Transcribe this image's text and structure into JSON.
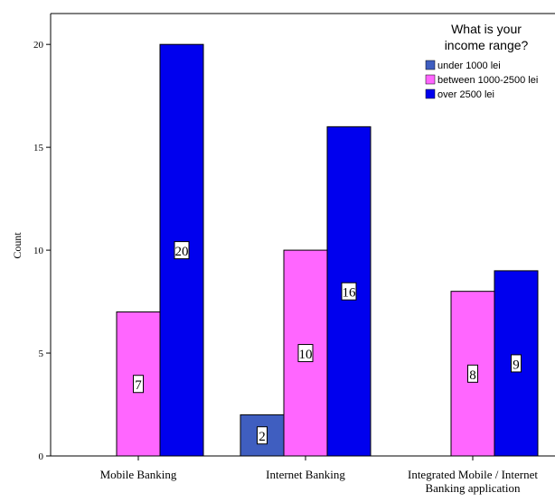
{
  "chart_data": {
    "type": "bar",
    "ylabel": "Count",
    "xlabel": "",
    "ylim": [
      0,
      21.5
    ],
    "yticks": [
      0,
      5,
      10,
      15,
      20
    ],
    "grid": false,
    "categories": [
      [
        "Mobile Banking"
      ],
      [
        "Internet Banking"
      ],
      [
        "Integrated Mobile / Internet",
        "Banking application"
      ]
    ],
    "legend": {
      "title": [
        "What is your",
        "income range?"
      ],
      "placement": "top-right"
    },
    "series": [
      {
        "name": "under 1000 lei",
        "color": "#3f5ec0",
        "values": [
          null,
          2,
          null
        ]
      },
      {
        "name": "between 1000-2500 lei",
        "color": "#ff66ff",
        "values": [
          7,
          10,
          8
        ]
      },
      {
        "name": "over 2500 lei",
        "color": "#0000ee",
        "values": [
          20,
          16,
          9
        ]
      }
    ],
    "data_labels": true
  }
}
